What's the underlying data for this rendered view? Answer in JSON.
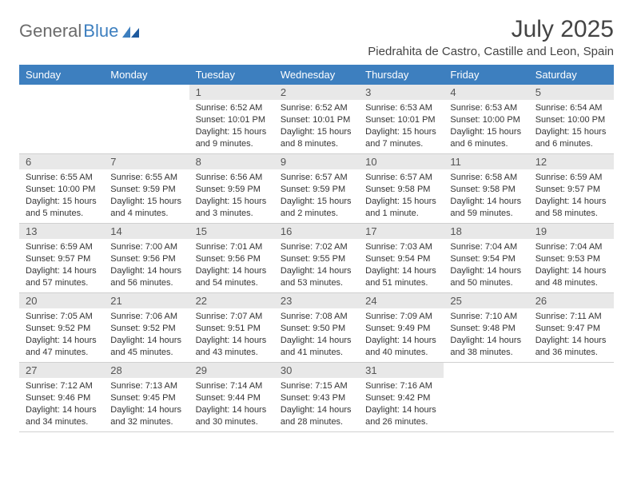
{
  "logo": {
    "part1": "General",
    "part2": "Blue"
  },
  "title": "July 2025",
  "location": "Piedrahita de Castro, Castille and Leon, Spain",
  "dayHeaders": [
    "Sunday",
    "Monday",
    "Tuesday",
    "Wednesday",
    "Thursday",
    "Friday",
    "Saturday"
  ],
  "style": {
    "header_bg": "#3d7fbf",
    "header_fg": "#ffffff",
    "daynum_bg": "#e8e8e8",
    "border": "#d0d0d0",
    "text": "#333333",
    "title_color": "#444444",
    "body_fontsize": 11,
    "header_fontsize": 13
  },
  "weeks": [
    [
      {
        "n": "",
        "lines": []
      },
      {
        "n": "",
        "lines": []
      },
      {
        "n": "1",
        "lines": [
          "Sunrise: 6:52 AM",
          "Sunset: 10:01 PM",
          "Daylight: 15 hours and 9 minutes."
        ]
      },
      {
        "n": "2",
        "lines": [
          "Sunrise: 6:52 AM",
          "Sunset: 10:01 PM",
          "Daylight: 15 hours and 8 minutes."
        ]
      },
      {
        "n": "3",
        "lines": [
          "Sunrise: 6:53 AM",
          "Sunset: 10:01 PM",
          "Daylight: 15 hours and 7 minutes."
        ]
      },
      {
        "n": "4",
        "lines": [
          "Sunrise: 6:53 AM",
          "Sunset: 10:00 PM",
          "Daylight: 15 hours and 6 minutes."
        ]
      },
      {
        "n": "5",
        "lines": [
          "Sunrise: 6:54 AM",
          "Sunset: 10:00 PM",
          "Daylight: 15 hours and 6 minutes."
        ]
      }
    ],
    [
      {
        "n": "6",
        "lines": [
          "Sunrise: 6:55 AM",
          "Sunset: 10:00 PM",
          "Daylight: 15 hours and 5 minutes."
        ]
      },
      {
        "n": "7",
        "lines": [
          "Sunrise: 6:55 AM",
          "Sunset: 9:59 PM",
          "Daylight: 15 hours and 4 minutes."
        ]
      },
      {
        "n": "8",
        "lines": [
          "Sunrise: 6:56 AM",
          "Sunset: 9:59 PM",
          "Daylight: 15 hours and 3 minutes."
        ]
      },
      {
        "n": "9",
        "lines": [
          "Sunrise: 6:57 AM",
          "Sunset: 9:59 PM",
          "Daylight: 15 hours and 2 minutes."
        ]
      },
      {
        "n": "10",
        "lines": [
          "Sunrise: 6:57 AM",
          "Sunset: 9:58 PM",
          "Daylight: 15 hours and 1 minute."
        ]
      },
      {
        "n": "11",
        "lines": [
          "Sunrise: 6:58 AM",
          "Sunset: 9:58 PM",
          "Daylight: 14 hours and 59 minutes."
        ]
      },
      {
        "n": "12",
        "lines": [
          "Sunrise: 6:59 AM",
          "Sunset: 9:57 PM",
          "Daylight: 14 hours and 58 minutes."
        ]
      }
    ],
    [
      {
        "n": "13",
        "lines": [
          "Sunrise: 6:59 AM",
          "Sunset: 9:57 PM",
          "Daylight: 14 hours and 57 minutes."
        ]
      },
      {
        "n": "14",
        "lines": [
          "Sunrise: 7:00 AM",
          "Sunset: 9:56 PM",
          "Daylight: 14 hours and 56 minutes."
        ]
      },
      {
        "n": "15",
        "lines": [
          "Sunrise: 7:01 AM",
          "Sunset: 9:56 PM",
          "Daylight: 14 hours and 54 minutes."
        ]
      },
      {
        "n": "16",
        "lines": [
          "Sunrise: 7:02 AM",
          "Sunset: 9:55 PM",
          "Daylight: 14 hours and 53 minutes."
        ]
      },
      {
        "n": "17",
        "lines": [
          "Sunrise: 7:03 AM",
          "Sunset: 9:54 PM",
          "Daylight: 14 hours and 51 minutes."
        ]
      },
      {
        "n": "18",
        "lines": [
          "Sunrise: 7:04 AM",
          "Sunset: 9:54 PM",
          "Daylight: 14 hours and 50 minutes."
        ]
      },
      {
        "n": "19",
        "lines": [
          "Sunrise: 7:04 AM",
          "Sunset: 9:53 PM",
          "Daylight: 14 hours and 48 minutes."
        ]
      }
    ],
    [
      {
        "n": "20",
        "lines": [
          "Sunrise: 7:05 AM",
          "Sunset: 9:52 PM",
          "Daylight: 14 hours and 47 minutes."
        ]
      },
      {
        "n": "21",
        "lines": [
          "Sunrise: 7:06 AM",
          "Sunset: 9:52 PM",
          "Daylight: 14 hours and 45 minutes."
        ]
      },
      {
        "n": "22",
        "lines": [
          "Sunrise: 7:07 AM",
          "Sunset: 9:51 PM",
          "Daylight: 14 hours and 43 minutes."
        ]
      },
      {
        "n": "23",
        "lines": [
          "Sunrise: 7:08 AM",
          "Sunset: 9:50 PM",
          "Daylight: 14 hours and 41 minutes."
        ]
      },
      {
        "n": "24",
        "lines": [
          "Sunrise: 7:09 AM",
          "Sunset: 9:49 PM",
          "Daylight: 14 hours and 40 minutes."
        ]
      },
      {
        "n": "25",
        "lines": [
          "Sunrise: 7:10 AM",
          "Sunset: 9:48 PM",
          "Daylight: 14 hours and 38 minutes."
        ]
      },
      {
        "n": "26",
        "lines": [
          "Sunrise: 7:11 AM",
          "Sunset: 9:47 PM",
          "Daylight: 14 hours and 36 minutes."
        ]
      }
    ],
    [
      {
        "n": "27",
        "lines": [
          "Sunrise: 7:12 AM",
          "Sunset: 9:46 PM",
          "Daylight: 14 hours and 34 minutes."
        ]
      },
      {
        "n": "28",
        "lines": [
          "Sunrise: 7:13 AM",
          "Sunset: 9:45 PM",
          "Daylight: 14 hours and 32 minutes."
        ]
      },
      {
        "n": "29",
        "lines": [
          "Sunrise: 7:14 AM",
          "Sunset: 9:44 PM",
          "Daylight: 14 hours and 30 minutes."
        ]
      },
      {
        "n": "30",
        "lines": [
          "Sunrise: 7:15 AM",
          "Sunset: 9:43 PM",
          "Daylight: 14 hours and 28 minutes."
        ]
      },
      {
        "n": "31",
        "lines": [
          "Sunrise: 7:16 AM",
          "Sunset: 9:42 PM",
          "Daylight: 14 hours and 26 minutes."
        ]
      },
      {
        "n": "",
        "lines": []
      },
      {
        "n": "",
        "lines": []
      }
    ]
  ]
}
